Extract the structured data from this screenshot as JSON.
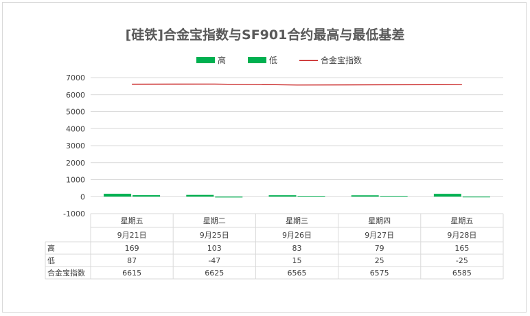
{
  "chart_data": {
    "type": "bar",
    "title": "[硅铁]合金宝指数与SF901合约最高与最低基差",
    "categories": [
      {
        "weekday": "星期五",
        "date": "9月21日"
      },
      {
        "weekday": "星期二",
        "date": "9月25日"
      },
      {
        "weekday": "星期三",
        "date": "9月26日"
      },
      {
        "weekday": "星期四",
        "date": "9月27日"
      },
      {
        "weekday": "星期五",
        "date": "9月28日"
      }
    ],
    "series": [
      {
        "name": "高",
        "type": "bar",
        "color": "#00b050",
        "values": [
          169,
          103,
          83,
          79,
          165
        ]
      },
      {
        "name": "低",
        "type": "bar",
        "color": "#00b050",
        "values": [
          87,
          -47,
          15,
          25,
          -25
        ]
      },
      {
        "name": "合金宝指数",
        "type": "line",
        "color": "#c00000",
        "values": [
          6615,
          6625,
          6565,
          6575,
          6585
        ]
      }
    ],
    "yticks": [
      "7000",
      "6000",
      "5000",
      "4000",
      "3000",
      "2000",
      "1000",
      "0",
      "-1000"
    ],
    "ylim": [
      -1000,
      7000
    ],
    "grid": true,
    "legend_position": "top"
  }
}
